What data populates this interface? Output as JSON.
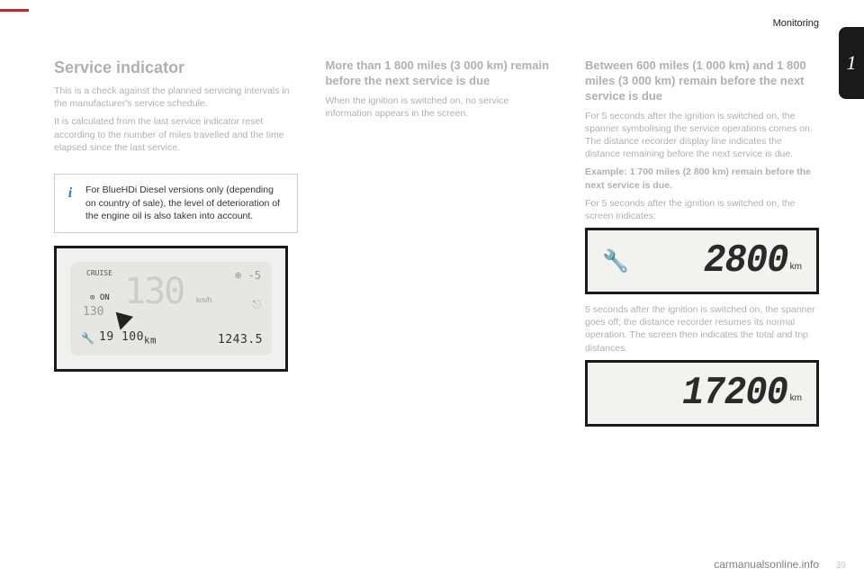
{
  "header": {
    "section": "Monitoring",
    "tab": "1",
    "red_bar_color": "#d42027"
  },
  "col1": {
    "title": "Service indicator",
    "p1": "This is a check against the planned servicing intervals in the manufacturer's service schedule.",
    "p2": "It is calculated from the last service indicator reset according to the number of miles travelled and the time elapsed since the last service.",
    "info": "For BlueHDi Diesel versions only (depending on country of sale), the level of deterioration of the engine oil is also taken into account.",
    "dash": {
      "cruise": "CRUISE",
      "on": "⊙ ON",
      "set130": "130",
      "speed": "130",
      "kmh": "km/h",
      "temp": "-5",
      "odo": "19 100",
      "odo_unit": "km",
      "trip": "1243.5"
    }
  },
  "col2": {
    "h3": "More than 1 800 miles (3 000 km) remain before the next service is due",
    "p1": "When the ignition is switched on, no service information appears in the screen."
  },
  "col3": {
    "h3": "Between 600 miles (1 000 km) and 1 800 miles (3 000 km) remain before the next service is due",
    "p1": "For 5 seconds after the ignition is switched on, the spanner symbolising the service operations comes on. The distance recorder display line indicates the distance remaining before the next service is due.",
    "p2": "Example: 1 700 miles (2 800 km) remain before the next service is due.",
    "p3": "For 5 seconds after the ignition is switched on, the screen indicates:",
    "lcd1": {
      "value": "2800",
      "unit": "km"
    },
    "p4": "5 seconds after the ignition is switched on, the spanner goes off; the distance recorder resumes its normal operation. The screen then indicates the total and trip distances.",
    "lcd2": {
      "value": "17200",
      "unit": "km"
    }
  },
  "footer": {
    "watermark": "carmanualsonline.info",
    "page": "39"
  }
}
